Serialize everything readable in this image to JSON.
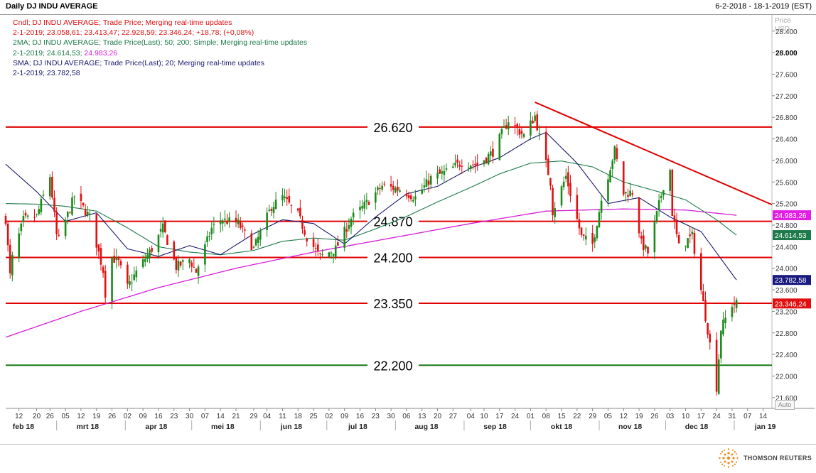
{
  "window": {
    "title": "Daily DJ INDU AVERAGE",
    "date_range": "6-2-2018 - 18-1-2019 (EST)"
  },
  "legend": {
    "line1": "Cndl; DJ INDU AVERAGE; Trade Price;  Merging real-time updates",
    "line2": "2-1-2019; 23.058,61; 23.413,47; 22.928,59; 23.346,24; +18,78; (+0,08%)",
    "line3": "2MA; DJ INDU AVERAGE; Trade Price(Last);  50; 200; Simple;  Merging real-time updates",
    "line4a": "2-1-2019; 24.614,53; ",
    "line4b": "24.983,26",
    "line5": "SMA; DJ INDU AVERAGE; Trade Price(Last);  20;  Merging real-time updates",
    "line6": "2-1-2019; 23.782,58"
  },
  "price_axis": {
    "header1": "Price",
    "header2": "USD",
    "auto_label": "Auto"
  },
  "branding": {
    "name": "THOMSON REUTERS"
  },
  "colors": {
    "up": "#1a8a1a",
    "down": "#e01010",
    "ma50": "#1e7a4a",
    "ma200": "#d51ed5",
    "sma20": "#1a1a6e",
    "level": "#e00000",
    "support": "#1a7a1a",
    "trend": "#e00000"
  },
  "chart_data": {
    "type": "candlestick",
    "ylim": [
      21400,
      28700
    ],
    "y_ticks": [
      {
        "v": 21600,
        "label": "21.600"
      },
      {
        "v": 22000,
        "label": "22.000"
      },
      {
        "v": 22400,
        "label": "22.400"
      },
      {
        "v": 22800,
        "label": "22.800"
      },
      {
        "v": 23200,
        "label": "23.200"
      },
      {
        "v": 23600,
        "label": "23.600"
      },
      {
        "v": 24000,
        "label": "24.000"
      },
      {
        "v": 24400,
        "label": "24.400"
      },
      {
        "v": 24800,
        "label": "24.800"
      },
      {
        "v": 25200,
        "label": "25.200"
      },
      {
        "v": 25600,
        "label": "25.600"
      },
      {
        "v": 26000,
        "label": "26.000"
      },
      {
        "v": 26400,
        "label": "26.400"
      },
      {
        "v": 26800,
        "label": "26.800"
      },
      {
        "v": 27200,
        "label": "27.200"
      },
      {
        "v": 27600,
        "label": "27.600"
      },
      {
        "v": 28000,
        "label": "28.000"
      },
      {
        "v": 28400,
        "label": "28.400"
      }
    ],
    "x_ticks": [
      {
        "d": "2018-02-12",
        "label": "12"
      },
      {
        "d": "2018-02-20",
        "label": "20"
      },
      {
        "d": "2018-02-26",
        "label": "26"
      },
      {
        "d": "2018-03-05",
        "label": "05"
      },
      {
        "d": "2018-03-12",
        "label": "12"
      },
      {
        "d": "2018-03-19",
        "label": "19"
      },
      {
        "d": "2018-03-26",
        "label": "26"
      },
      {
        "d": "2018-04-02",
        "label": "02"
      },
      {
        "d": "2018-04-09",
        "label": "09"
      },
      {
        "d": "2018-04-16",
        "label": "16"
      },
      {
        "d": "2018-04-23",
        "label": "23"
      },
      {
        "d": "2018-04-30",
        "label": "30"
      },
      {
        "d": "2018-05-07",
        "label": "07"
      },
      {
        "d": "2018-05-14",
        "label": "14"
      },
      {
        "d": "2018-05-21",
        "label": "21"
      },
      {
        "d": "2018-05-29",
        "label": "29"
      },
      {
        "d": "2018-06-04",
        "label": "04"
      },
      {
        "d": "2018-06-11",
        "label": "11"
      },
      {
        "d": "2018-06-18",
        "label": "18"
      },
      {
        "d": "2018-06-25",
        "label": "25"
      },
      {
        "d": "2018-07-02",
        "label": "02"
      },
      {
        "d": "2018-07-09",
        "label": "09"
      },
      {
        "d": "2018-07-16",
        "label": "16"
      },
      {
        "d": "2018-07-23",
        "label": "23"
      },
      {
        "d": "2018-07-30",
        "label": "30"
      },
      {
        "d": "2018-08-06",
        "label": "06"
      },
      {
        "d": "2018-08-13",
        "label": "13"
      },
      {
        "d": "2018-08-20",
        "label": "20"
      },
      {
        "d": "2018-08-27",
        "label": "27"
      },
      {
        "d": "2018-09-04",
        "label": "04"
      },
      {
        "d": "2018-09-10",
        "label": "10"
      },
      {
        "d": "2018-09-17",
        "label": "17"
      },
      {
        "d": "2018-09-24",
        "label": "24"
      },
      {
        "d": "2018-10-01",
        "label": "01"
      },
      {
        "d": "2018-10-08",
        "label": "08"
      },
      {
        "d": "2018-10-15",
        "label": "15"
      },
      {
        "d": "2018-10-22",
        "label": "22"
      },
      {
        "d": "2018-10-29",
        "label": "29"
      },
      {
        "d": "2018-11-05",
        "label": "05"
      },
      {
        "d": "2018-11-12",
        "label": "12"
      },
      {
        "d": "2018-11-19",
        "label": "19"
      },
      {
        "d": "2018-11-26",
        "label": "26"
      },
      {
        "d": "2018-12-03",
        "label": "03"
      },
      {
        "d": "2018-12-10",
        "label": "10"
      },
      {
        "d": "2018-12-17",
        "label": "17"
      },
      {
        "d": "2018-12-24",
        "label": "24"
      },
      {
        "d": "2018-12-31",
        "label": "31"
      },
      {
        "d": "2019-01-07",
        "label": "07"
      },
      {
        "d": "2019-01-14",
        "label": "14"
      }
    ],
    "month_labels": [
      {
        "label": "feb 18",
        "d": "2018-02-14"
      },
      {
        "label": "mrt 18",
        "d": "2018-03-15"
      },
      {
        "label": "apr 18",
        "d": "2018-04-15"
      },
      {
        "label": "mei 18",
        "d": "2018-05-15"
      },
      {
        "label": "jun 18",
        "d": "2018-06-15"
      },
      {
        "label": "jul 18",
        "d": "2018-07-15"
      },
      {
        "label": "aug 18",
        "d": "2018-08-15"
      },
      {
        "label": "sep 18",
        "d": "2018-09-15"
      },
      {
        "label": "okt 18",
        "d": "2018-10-15"
      },
      {
        "label": "nov 18",
        "d": "2018-11-15"
      },
      {
        "label": "dec 18",
        "d": "2018-12-15"
      },
      {
        "label": "jan 19",
        "d": "2019-01-15"
      }
    ],
    "month_dividers": [
      "2018-03-01",
      "2018-04-01",
      "2018-05-01",
      "2018-06-01",
      "2018-07-01",
      "2018-08-01",
      "2018-09-01",
      "2018-10-01",
      "2018-11-01",
      "2018-12-01",
      "2019-01-01"
    ],
    "x_range": [
      "2018-02-06",
      "2019-01-18"
    ],
    "levels": [
      {
        "value": 26620,
        "label": "26.620",
        "color": "level"
      },
      {
        "value": 24870,
        "label": "24.870",
        "color": "level"
      },
      {
        "value": 24200,
        "label": "24.200",
        "color": "level"
      },
      {
        "value": 23350,
        "label": "23.350",
        "color": "level"
      },
      {
        "value": 22200,
        "label": "22.200",
        "color": "support"
      }
    ],
    "trendline": [
      {
        "d": "2018-10-03",
        "v": 27080
      },
      {
        "d": "2019-01-18",
        "v": 25180
      }
    ],
    "close_key_points": [
      [
        "2018-02-06",
        24912
      ],
      [
        "2018-02-08",
        23860
      ],
      [
        "2018-02-09",
        24190
      ],
      [
        "2018-02-14",
        24893
      ],
      [
        "2018-02-20",
        24964
      ],
      [
        "2018-02-26",
        25709
      ],
      [
        "2018-03-01",
        24608
      ],
      [
        "2018-03-02",
        24538
      ],
      [
        "2018-03-09",
        25336
      ],
      [
        "2018-03-12",
        25178
      ],
      [
        "2018-03-16",
        24946
      ],
      [
        "2018-03-22",
        23957
      ],
      [
        "2018-03-23",
        23533
      ],
      [
        "2018-03-26",
        24202
      ],
      [
        "2018-03-29",
        24103
      ],
      [
        "2018-04-02",
        23644
      ],
      [
        "2018-04-06",
        23933
      ],
      [
        "2018-04-13",
        24360
      ],
      [
        "2018-04-18",
        24748
      ],
      [
        "2018-04-24",
        24024
      ],
      [
        "2018-04-30",
        24163
      ],
      [
        "2018-05-03",
        23931
      ],
      [
        "2018-05-10",
        24739
      ],
      [
        "2018-05-14",
        24900
      ],
      [
        "2018-05-22",
        24834
      ],
      [
        "2018-05-29",
        24361
      ],
      [
        "2018-06-06",
        25146
      ],
      [
        "2018-06-11",
        25322
      ],
      [
        "2018-06-18",
        24987
      ],
      [
        "2018-06-22",
        24581
      ],
      [
        "2018-06-28",
        24217
      ],
      [
        "2018-07-05",
        24356
      ],
      [
        "2018-07-12",
        24925
      ],
      [
        "2018-07-17",
        25120
      ],
      [
        "2018-07-26",
        25527
      ],
      [
        "2018-08-03",
        25463
      ],
      [
        "2018-08-10",
        25313
      ],
      [
        "2018-08-17",
        25669
      ],
      [
        "2018-08-24",
        25790
      ],
      [
        "2018-08-31",
        25965
      ],
      [
        "2018-09-07",
        25917
      ],
      [
        "2018-09-14",
        26155
      ],
      [
        "2018-09-21",
        26744
      ],
      [
        "2018-09-28",
        26458
      ],
      [
        "2018-10-03",
        26828
      ],
      [
        "2018-10-05",
        26447
      ],
      [
        "2018-10-10",
        25599
      ],
      [
        "2018-10-11",
        25052
      ],
      [
        "2018-10-17",
        25706
      ],
      [
        "2018-10-24",
        24583
      ],
      [
        "2018-10-29",
        24443
      ],
      [
        "2018-11-02",
        25271
      ],
      [
        "2018-11-08",
        26191
      ],
      [
        "2018-11-12",
        25387
      ],
      [
        "2018-11-16",
        25413
      ],
      [
        "2018-11-20",
        24465
      ],
      [
        "2018-11-23",
        24286
      ],
      [
        "2018-11-30",
        25538
      ],
      [
        "2018-12-03",
        25826
      ],
      [
        "2018-12-04",
        25027
      ],
      [
        "2018-12-07",
        24389
      ],
      [
        "2018-12-13",
        24597
      ],
      [
        "2018-12-17",
        23592
      ],
      [
        "2018-12-20",
        22859
      ],
      [
        "2018-12-24",
        21792
      ],
      [
        "2018-12-26",
        22878
      ],
      [
        "2018-12-28",
        23062
      ],
      [
        "2018-12-31",
        23327
      ],
      [
        "2019-01-02",
        23346
      ]
    ],
    "ma50_key_points": [
      [
        "2018-02-06",
        25200
      ],
      [
        "2018-02-20",
        25190
      ],
      [
        "2018-03-05",
        25150
      ],
      [
        "2018-03-19",
        25060
      ],
      [
        "2018-04-02",
        24750
      ],
      [
        "2018-04-16",
        24400
      ],
      [
        "2018-04-30",
        24300
      ],
      [
        "2018-05-14",
        24250
      ],
      [
        "2018-05-29",
        24330
      ],
      [
        "2018-06-11",
        24500
      ],
      [
        "2018-06-25",
        24560
      ],
      [
        "2018-07-09",
        24520
      ],
      [
        "2018-07-23",
        24730
      ],
      [
        "2018-08-06",
        24960
      ],
      [
        "2018-08-20",
        25230
      ],
      [
        "2018-09-04",
        25500
      ],
      [
        "2018-09-17",
        25750
      ],
      [
        "2018-10-01",
        25950
      ],
      [
        "2018-10-15",
        25990
      ],
      [
        "2018-10-29",
        25880
      ],
      [
        "2018-11-12",
        25600
      ],
      [
        "2018-11-26",
        25440
      ],
      [
        "2018-12-10",
        25270
      ],
      [
        "2018-12-24",
        24900
      ],
      [
        "2019-01-02",
        24614
      ]
    ],
    "ma200_key_points": [
      [
        "2018-02-06",
        22720
      ],
      [
        "2018-03-12",
        23200
      ],
      [
        "2018-04-16",
        23640
      ],
      [
        "2018-05-21",
        24000
      ],
      [
        "2018-06-25",
        24300
      ],
      [
        "2018-07-30",
        24560
      ],
      [
        "2018-09-04",
        24830
      ],
      [
        "2018-10-08",
        25060
      ],
      [
        "2018-11-12",
        25100
      ],
      [
        "2018-12-10",
        25080
      ],
      [
        "2019-01-02",
        24983
      ]
    ],
    "sma20_key_points": [
      [
        "2018-02-06",
        25930
      ],
      [
        "2018-02-20",
        25420
      ],
      [
        "2018-03-05",
        24870
      ],
      [
        "2018-03-19",
        25030
      ],
      [
        "2018-04-02",
        24360
      ],
      [
        "2018-04-16",
        24220
      ],
      [
        "2018-04-30",
        24420
      ],
      [
        "2018-05-14",
        24250
      ],
      [
        "2018-05-29",
        24640
      ],
      [
        "2018-06-11",
        24900
      ],
      [
        "2018-06-25",
        24830
      ],
      [
        "2018-07-09",
        24450
      ],
      [
        "2018-07-23",
        24950
      ],
      [
        "2018-08-06",
        25380
      ],
      [
        "2018-08-20",
        25520
      ],
      [
        "2018-09-04",
        25860
      ],
      [
        "2018-09-17",
        26050
      ],
      [
        "2018-10-01",
        26400
      ],
      [
        "2018-10-08",
        26520
      ],
      [
        "2018-10-22",
        25950
      ],
      [
        "2018-11-05",
        25200
      ],
      [
        "2018-11-19",
        25310
      ],
      [
        "2018-12-03",
        24950
      ],
      [
        "2018-12-17",
        24680
      ],
      [
        "2019-01-02",
        23782
      ]
    ],
    "tags": [
      {
        "value": 24983.26,
        "label": "24.983,26",
        "bg": "#e31ee3",
        "fg": "#fff"
      },
      {
        "value": 24614.53,
        "label": "24.614,53",
        "bg": "#1e7a4a",
        "fg": "#fff"
      },
      {
        "value": 23782.58,
        "label": "23.782,58",
        "bg": "#1a1a80",
        "fg": "#fff"
      },
      {
        "value": 23346.24,
        "label": "23.346,24",
        "bg": "#e01010",
        "fg": "#fff"
      }
    ]
  }
}
